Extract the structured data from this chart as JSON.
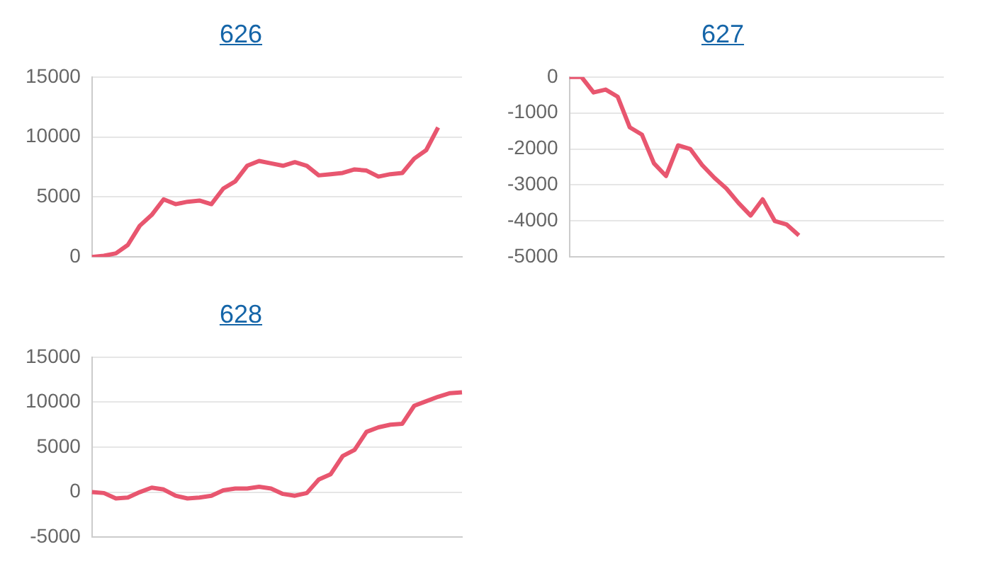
{
  "chart_data": [
    {
      "type": "line",
      "title": "626",
      "categories": [
        null,
        null,
        null,
        null,
        null,
        null,
        null,
        null,
        null,
        null,
        null,
        null,
        null,
        null,
        null,
        null,
        null,
        null,
        null,
        null,
        null,
        null,
        null,
        null,
        null,
        null,
        null,
        null,
        null,
        null,
        null,
        null
      ],
      "series": [
        {
          "color": "#e8566f",
          "values": [
            0,
            100,
            300,
            1000,
            2600,
            3500,
            4800,
            4400,
            4600,
            4700,
            4400,
            5700,
            6300,
            7600,
            8000,
            7800,
            7600,
            7900,
            7600,
            6800,
            6900,
            7000,
            7300,
            7200,
            6700,
            6900,
            7000,
            8200,
            8900,
            10800,
            null,
            null
          ]
        }
      ],
      "ylim": [
        0,
        15000
      ],
      "yticks": [
        0,
        5000,
        10000,
        15000
      ],
      "grid": "y",
      "tick_labels": "y",
      "marker": "none"
    },
    {
      "type": "line",
      "title": "627",
      "categories": [
        null,
        null,
        null,
        null,
        null,
        null,
        null,
        null,
        null,
        null,
        null,
        null,
        null,
        null,
        null,
        null,
        null,
        null,
        null,
        null,
        null,
        null,
        null,
        null,
        null,
        null,
        null,
        null,
        null,
        null,
        null,
        null
      ],
      "series": [
        {
          "color": "#e8566f",
          "values": [
            0,
            0,
            -430,
            -350,
            -550,
            -1400,
            -1600,
            -2400,
            -2750,
            -1900,
            -2000,
            -2450,
            -2800,
            -3100,
            -3500,
            -3850,
            -3400,
            -4000,
            -4100,
            -4400,
            null,
            null,
            null,
            null,
            null,
            null,
            null,
            null,
            null,
            null,
            null,
            null
          ]
        }
      ],
      "ylim": [
        -5000,
        0
      ],
      "yticks": [
        -5000,
        -4000,
        -3000,
        -2000,
        -1000,
        0
      ],
      "grid": "y",
      "tick_labels": "y",
      "marker": "none"
    },
    {
      "type": "line",
      "title": "628",
      "categories": [
        null,
        null,
        null,
        null,
        null,
        null,
        null,
        null,
        null,
        null,
        null,
        null,
        null,
        null,
        null,
        null,
        null,
        null,
        null,
        null,
        null,
        null,
        null,
        null,
        null,
        null,
        null,
        null,
        null,
        null,
        null,
        null
      ],
      "series": [
        {
          "color": "#e8566f",
          "values": [
            0,
            -100,
            -700,
            -600,
            0,
            500,
            300,
            -400,
            -700,
            -600,
            -400,
            200,
            400,
            400,
            600,
            400,
            -200,
            -400,
            -100,
            1400,
            2000,
            4000,
            4700,
            6700,
            7200,
            7500,
            7600,
            9600,
            10100,
            10600,
            11000,
            11100
          ]
        }
      ],
      "ylim": [
        -5000,
        15000
      ],
      "yticks": [
        -5000,
        0,
        5000,
        10000,
        15000
      ],
      "grid": "y",
      "tick_labels": "y",
      "marker": "none"
    }
  ]
}
